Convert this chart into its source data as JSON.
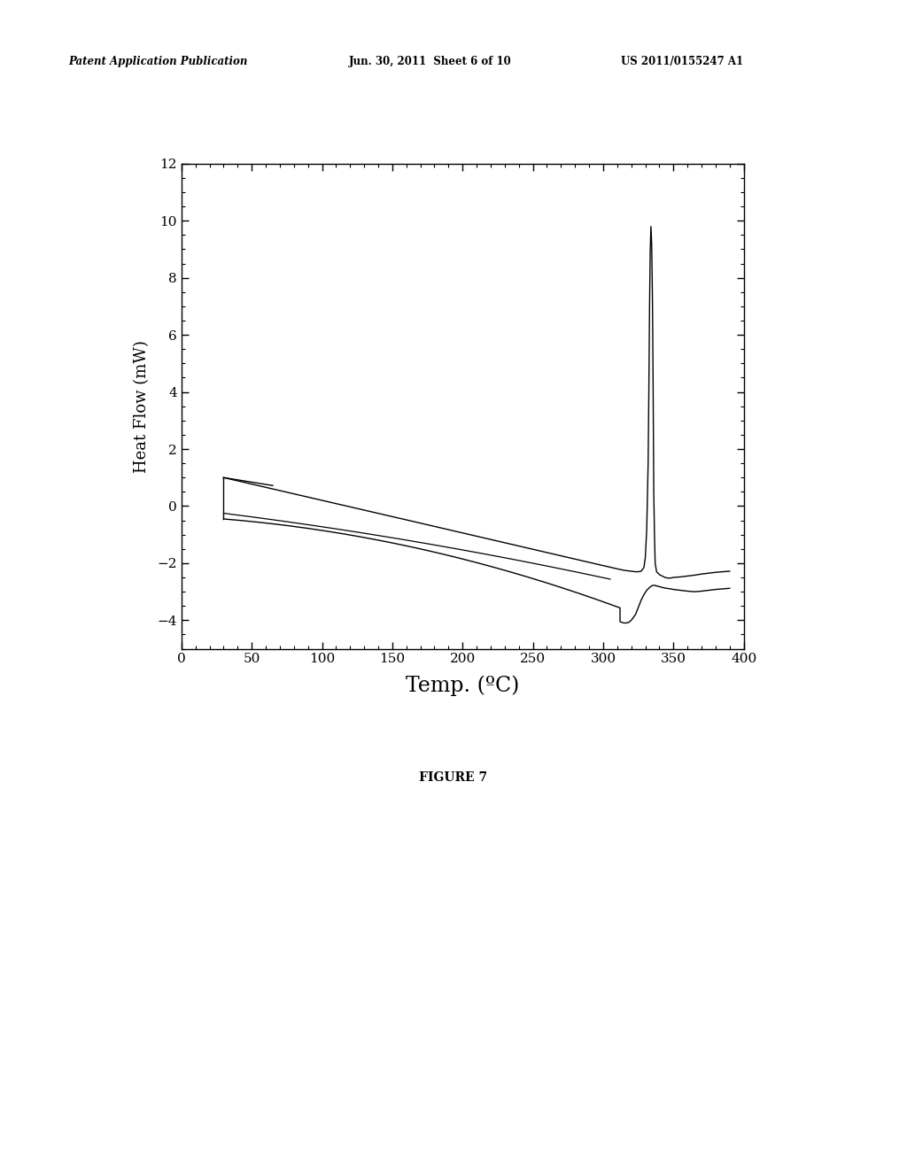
{
  "title": "",
  "xlabel": "Temp. (ºC)",
  "ylabel": "Heat Flow (mW)",
  "xlim": [
    0,
    400
  ],
  "ylim": [
    -5,
    12
  ],
  "xticks": [
    0,
    50,
    100,
    150,
    200,
    250,
    300,
    350,
    400
  ],
  "yticks": [
    -4,
    -2,
    0,
    2,
    4,
    6,
    8,
    10,
    12
  ],
  "line_color": "#000000",
  "background_color": "#ffffff",
  "figure_caption": "FIGURE 7",
  "header_left": "Patent Application Publication",
  "header_mid": "Jun. 30, 2011  Sheet 6 of 10",
  "header_right": "US 2011/0155247 A1"
}
